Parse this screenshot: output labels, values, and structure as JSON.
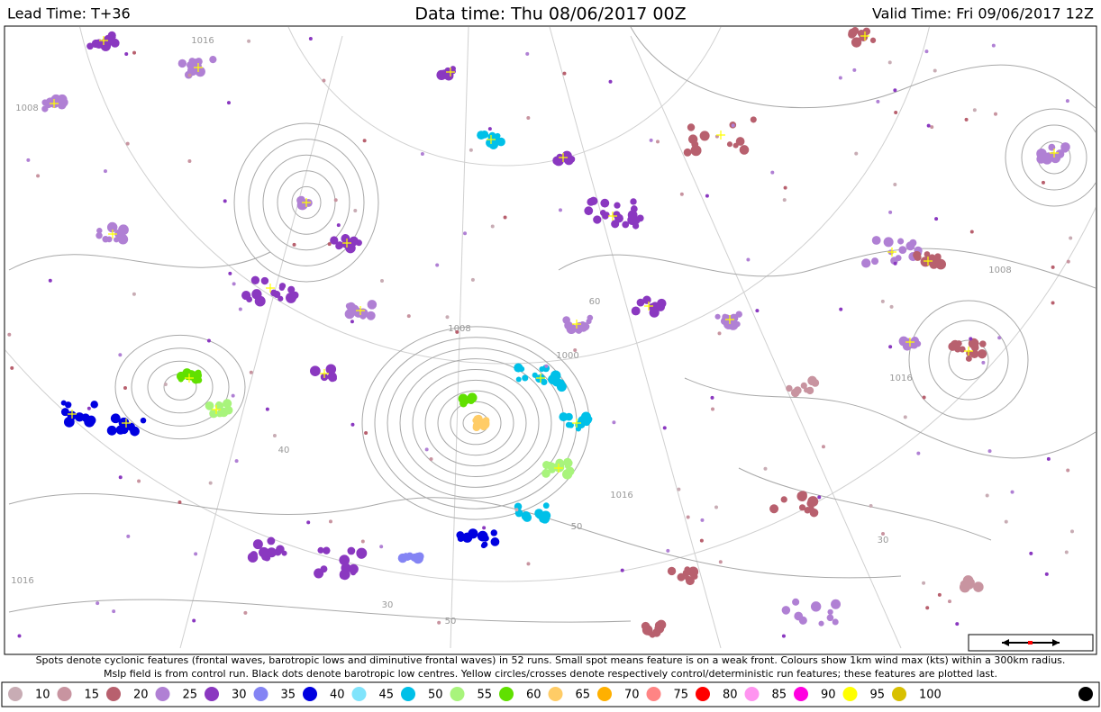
{
  "header": {
    "lead_time": "Lead Time: T+36",
    "data_time": "Data time:  Thu 08/06/2017 00Z",
    "valid_time": "Valid Time: Fri 09/06/2017 12Z"
  },
  "caption": {
    "line1": "Spots denote cyclonic features (frontal waves, barotropic lows and diminutive frontal waves) in 52 runs. Small spot means feature is on a weak front. Colours show 1km wind max (kts) within a 300km radius.",
    "line2": "Mslp field is from control run. Black dots denote barotropic low centres. Yellow circles/crosses denote respectively control/deterministic run features; these features are plotted last."
  },
  "legend": [
    {
      "label": "10",
      "color": "#c8acb4"
    },
    {
      "label": "15",
      "color": "#c894a0"
    },
    {
      "label": "20",
      "color": "#b8606e"
    },
    {
      "label": "25",
      "color": "#b080d4"
    },
    {
      "label": "30",
      "color": "#8a38c0"
    },
    {
      "label": "35",
      "color": "#8484f4"
    },
    {
      "label": "40",
      "color": "#0000e0"
    },
    {
      "label": "45",
      "color": "#80e4fc"
    },
    {
      "label": "50",
      "color": "#00c0e8"
    },
    {
      "label": "55",
      "color": "#a8f47c"
    },
    {
      "label": "60",
      "color": "#60e000"
    },
    {
      "label": "65",
      "color": "#ffcc66"
    },
    {
      "label": "70",
      "color": "#ffb000"
    },
    {
      "label": "75",
      "color": "#ff8484"
    },
    {
      "label": "80",
      "color": "#ff0000"
    },
    {
      "label": "85",
      "color": "#ff94f0"
    },
    {
      "label": "90",
      "color": "#ff00e0"
    },
    {
      "label": "95",
      "color": "#ffff00"
    },
    {
      "label": "100",
      "color": "#d8c000"
    }
  ],
  "map": {
    "isobar_labels": [
      "1008",
      "1016",
      "1000",
      "1008",
      "1016",
      "1016",
      "1008",
      "1016",
      "40",
      "50",
      "30",
      "60",
      "50",
      "30"
    ]
  }
}
